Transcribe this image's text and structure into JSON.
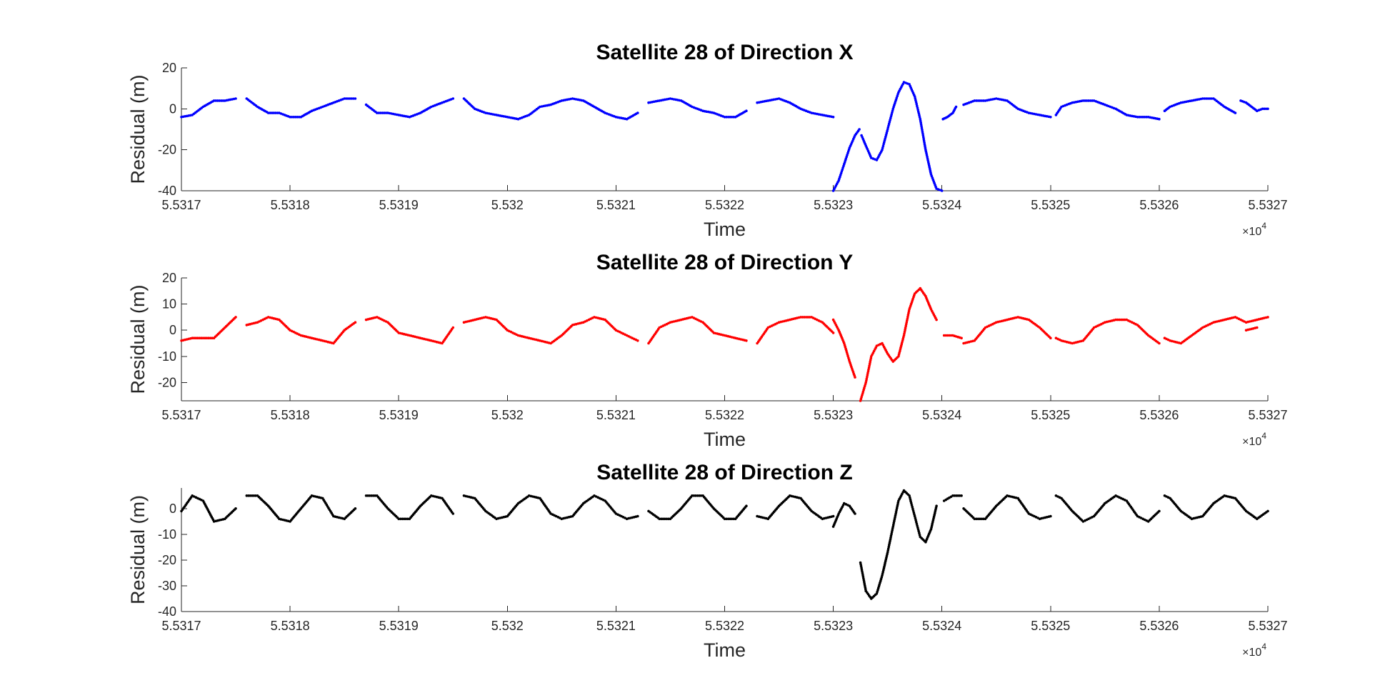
{
  "chart_data": [
    {
      "type": "scatter",
      "title": "Satellite 28 of Direction X",
      "xlabel": "Time",
      "ylabel": "Residual (m)",
      "x_exponent_base": "×10",
      "x_exponent_power": "4",
      "xlim": [
        5.5317,
        5.5327
      ],
      "ylim": [
        -40,
        20
      ],
      "xticks": [
        5.5317,
        5.5318,
        5.5319,
        5.532,
        5.5321,
        5.5322,
        5.5323,
        5.5324,
        5.5325,
        5.5326,
        5.5327
      ],
      "xtick_labels": [
        "5.5317",
        "5.5318",
        "5.5319",
        "5.532",
        "5.5321",
        "5.5322",
        "5.5323",
        "5.5324",
        "5.5325",
        "5.5326",
        "5.5327"
      ],
      "yticks": [
        -40,
        -20,
        0,
        20
      ],
      "ytick_labels": [
        "-40",
        "-20",
        "0",
        "20"
      ],
      "color": "#0000ff",
      "grid": false,
      "series": [
        {
          "x": [
            5.5317,
            5.53171,
            5.53172,
            5.53173,
            5.53174,
            5.53175
          ],
          "y": [
            -4,
            -3,
            1,
            4,
            4,
            5
          ]
        },
        {
          "x": [
            5.53176,
            5.53177,
            5.53178,
            5.53179,
            5.5318,
            5.53181,
            5.53182,
            5.53183,
            5.53184,
            5.53185,
            5.53186
          ],
          "y": [
            5,
            1,
            -2,
            -2,
            -4,
            -4,
            -1,
            1,
            3,
            5,
            5
          ]
        },
        {
          "x": [
            5.53187,
            5.53188,
            5.53189,
            5.5319,
            5.53191,
            5.53192,
            5.53193,
            5.53194,
            5.53195
          ],
          "y": [
            2,
            -2,
            -2,
            -3,
            -4,
            -2,
            1,
            3,
            5
          ]
        },
        {
          "x": [
            5.53196,
            5.53197,
            5.53198,
            5.53199,
            5.532,
            5.53201,
            5.53202,
            5.53203,
            5.53204,
            5.53205,
            5.53206,
            5.53207,
            5.53208,
            5.53209,
            5.5321,
            5.53211,
            5.53212
          ],
          "y": [
            5,
            0,
            -2,
            -3,
            -4,
            -5,
            -3,
            1,
            2,
            4,
            5,
            4,
            1,
            -2,
            -4,
            -5,
            -2
          ]
        },
        {
          "x": [
            5.53213,
            5.53214,
            5.53215,
            5.53216,
            5.53217,
            5.53218,
            5.53219,
            5.5322,
            5.53221,
            5.53222
          ],
          "y": [
            3,
            4,
            5,
            4,
            1,
            -1,
            -2,
            -4,
            -4,
            -1
          ]
        },
        {
          "x": [
            5.53223,
            5.53224,
            5.53225,
            5.53226,
            5.53227,
            5.53228,
            5.53229,
            5.5323
          ],
          "y": [
            3,
            4,
            5,
            3,
            0,
            -2,
            -3,
            -4
          ]
        },
        {
          "x": [
            5.5323,
            5.532305,
            5.53231,
            5.532315,
            5.53232,
            5.532324
          ],
          "y": [
            -40,
            -35,
            -27,
            -19,
            -13,
            -10
          ]
        },
        {
          "x": [
            5.532326,
            5.53233,
            5.532335,
            5.53234,
            5.532345,
            5.53235,
            5.532355,
            5.53236,
            5.532365,
            5.53237,
            5.532375,
            5.53238,
            5.532385,
            5.53239,
            5.532395,
            5.5324
          ],
          "y": [
            -13,
            -18,
            -24,
            -25,
            -20,
            -10,
            0,
            8,
            13,
            12,
            6,
            -5,
            -20,
            -32,
            -39,
            -40
          ]
        },
        {
          "x": [
            5.532401,
            5.532405,
            5.53241,
            5.532413
          ],
          "y": [
            -5,
            -4,
            -2,
            1
          ]
        },
        {
          "x": [
            5.53242,
            5.53243,
            5.53244,
            5.53245,
            5.53246,
            5.53247,
            5.53248,
            5.53249,
            5.5325
          ],
          "y": [
            2,
            4,
            4,
            5,
            4,
            0,
            -2,
            -3,
            -4
          ]
        },
        {
          "x": [
            5.532505,
            5.53251,
            5.53252,
            5.53253,
            5.53254,
            5.53255,
            5.53256,
            5.53257,
            5.53258,
            5.53259,
            5.5326
          ],
          "y": [
            -3,
            1,
            3,
            4,
            4,
            2,
            0,
            -3,
            -4,
            -4,
            -5
          ]
        },
        {
          "x": [
            5.532605,
            5.53261,
            5.53262,
            5.53263,
            5.53264,
            5.53265,
            5.53266,
            5.53267
          ],
          "y": [
            -1,
            1,
            3,
            4,
            5,
            5,
            1,
            -2
          ]
        },
        {
          "x": [
            5.532675,
            5.53268,
            5.532685,
            5.53269,
            5.532695,
            5.5327
          ],
          "y": [
            4,
            3,
            1,
            -1,
            0,
            0
          ]
        }
      ]
    },
    {
      "type": "scatter",
      "title": "Satellite 28 of Direction Y",
      "xlabel": "Time",
      "ylabel": "Residual (m)",
      "x_exponent_base": "×10",
      "x_exponent_power": "4",
      "xlim": [
        5.5317,
        5.5327
      ],
      "ylim": [
        -27,
        20
      ],
      "xticks": [
        5.5317,
        5.5318,
        5.5319,
        5.532,
        5.5321,
        5.5322,
        5.5323,
        5.5324,
        5.5325,
        5.5326,
        5.5327
      ],
      "xtick_labels": [
        "5.5317",
        "5.5318",
        "5.5319",
        "5.532",
        "5.5321",
        "5.5322",
        "5.5323",
        "5.5324",
        "5.5325",
        "5.5326",
        "5.5327"
      ],
      "yticks": [
        -20,
        -10,
        0,
        10,
        20
      ],
      "ytick_labels": [
        "-20",
        "-10",
        "0",
        "10",
        "20"
      ],
      "color": "#ff0000",
      "grid": false,
      "series": [
        {
          "x": [
            5.5317,
            5.53171,
            5.53172,
            5.53173,
            5.53174,
            5.53175
          ],
          "y": [
            -4,
            -3,
            -3,
            -3,
            1,
            5
          ]
        },
        {
          "x": [
            5.53176,
            5.53177,
            5.53178,
            5.53179,
            5.5318,
            5.53181,
            5.53182,
            5.53183,
            5.53184,
            5.53185,
            5.53186
          ],
          "y": [
            2,
            3,
            5,
            4,
            0,
            -2,
            -3,
            -4,
            -5,
            0,
            3
          ]
        },
        {
          "x": [
            5.53187,
            5.53188,
            5.53189,
            5.5319,
            5.53191,
            5.53192,
            5.53193,
            5.53194,
            5.53195
          ],
          "y": [
            4,
            5,
            3,
            -1,
            -2,
            -3,
            -4,
            -5,
            1
          ]
        },
        {
          "x": [
            5.53196,
            5.53197,
            5.53198,
            5.53199,
            5.532,
            5.53201,
            5.53202,
            5.53203,
            5.53204,
            5.53205,
            5.53206,
            5.53207,
            5.53208,
            5.53209,
            5.5321,
            5.53211,
            5.53212
          ],
          "y": [
            3,
            4,
            5,
            4,
            0,
            -2,
            -3,
            -4,
            -5,
            -2,
            2,
            3,
            5,
            4,
            0,
            -2,
            -4
          ]
        },
        {
          "x": [
            5.53213,
            5.53214,
            5.53215,
            5.53216,
            5.53217,
            5.53218,
            5.53219,
            5.5322,
            5.53221,
            5.53222
          ],
          "y": [
            -5,
            1,
            3,
            4,
            5,
            3,
            -1,
            -2,
            -3,
            -4
          ]
        },
        {
          "x": [
            5.53223,
            5.53224,
            5.53225,
            5.53226,
            5.53227,
            5.53228,
            5.53229,
            5.5323
          ],
          "y": [
            -5,
            1,
            3,
            4,
            5,
            5,
            3,
            -1
          ]
        },
        {
          "x": [
            5.5323,
            5.532305,
            5.53231,
            5.532315,
            5.53232
          ],
          "y": [
            4,
            0,
            -5,
            -12,
            -18
          ]
        },
        {
          "x": [
            5.532325,
            5.53233,
            5.532335,
            5.53234,
            5.532345,
            5.53235,
            5.532355,
            5.53236,
            5.532365,
            5.53237,
            5.532375,
            5.53238,
            5.532385,
            5.53239,
            5.532395
          ],
          "y": [
            -27,
            -20,
            -10,
            -6,
            -5,
            -9,
            -12,
            -10,
            -2,
            8,
            14,
            16,
            13,
            8,
            4
          ]
        },
        {
          "x": [
            5.532402,
            5.53241,
            5.532418
          ],
          "y": [
            -2,
            -2,
            -3
          ]
        },
        {
          "x": [
            5.53242,
            5.53243,
            5.53244,
            5.53245,
            5.53246,
            5.53247,
            5.53248,
            5.53249,
            5.5325
          ],
          "y": [
            -5,
            -4,
            1,
            3,
            4,
            5,
            4,
            1,
            -3
          ]
        },
        {
          "x": [
            5.532505,
            5.53251,
            5.53252,
            5.53253,
            5.53254,
            5.53255,
            5.53256,
            5.53257,
            5.53258,
            5.53259,
            5.5326
          ],
          "y": [
            -3,
            -4,
            -5,
            -4,
            1,
            3,
            4,
            4,
            2,
            -2,
            -5
          ]
        },
        {
          "x": [
            5.532605,
            5.53261,
            5.53262,
            5.53263,
            5.53264,
            5.53265,
            5.53266,
            5.53267,
            5.53268,
            5.53269,
            5.5327
          ],
          "y": [
            -3,
            -4,
            -5,
            -2,
            1,
            3,
            4,
            5,
            3,
            4,
            5
          ]
        },
        {
          "x": [
            5.53268,
            5.53269
          ],
          "y": [
            0,
            1
          ]
        }
      ]
    },
    {
      "type": "scatter",
      "title": "Satellite 28 of Direction Z",
      "xlabel": "Time",
      "ylabel": "Residual (m)",
      "x_exponent_base": "×10",
      "x_exponent_power": "4",
      "xlim": [
        5.5317,
        5.5327
      ],
      "ylim": [
        -40,
        8
      ],
      "xticks": [
        5.5317,
        5.5318,
        5.5319,
        5.532,
        5.5321,
        5.5322,
        5.5323,
        5.5324,
        5.5325,
        5.5326,
        5.5327
      ],
      "xtick_labels": [
        "5.5317",
        "5.5318",
        "5.5319",
        "5.532",
        "5.5321",
        "5.5322",
        "5.5323",
        "5.5324",
        "5.5325",
        "5.5326",
        "5.5327"
      ],
      "yticks": [
        -40,
        -30,
        -20,
        -10,
        0
      ],
      "ytick_labels": [
        "-40",
        "-30",
        "-20",
        "-10",
        "0"
      ],
      "color": "#000000",
      "grid": false,
      "series": [
        {
          "x": [
            5.5317,
            5.53171,
            5.53172,
            5.53173,
            5.53174,
            5.53175
          ],
          "y": [
            -1,
            5,
            3,
            -5,
            -4,
            0
          ]
        },
        {
          "x": [
            5.53176,
            5.53177,
            5.53178,
            5.53179,
            5.5318,
            5.53181,
            5.53182,
            5.53183,
            5.53184,
            5.53185,
            5.53186
          ],
          "y": [
            5,
            5,
            1,
            -4,
            -5,
            0,
            5,
            4,
            -3,
            -4,
            0
          ]
        },
        {
          "x": [
            5.53187,
            5.53188,
            5.53189,
            5.5319,
            5.53191,
            5.53192,
            5.53193,
            5.53194,
            5.53195
          ],
          "y": [
            5,
            5,
            0,
            -4,
            -4,
            1,
            5,
            4,
            -2
          ]
        },
        {
          "x": [
            5.53196,
            5.53197,
            5.53198,
            5.53199,
            5.532,
            5.53201,
            5.53202,
            5.53203,
            5.53204,
            5.53205,
            5.53206,
            5.53207,
            5.53208,
            5.53209,
            5.5321,
            5.53211,
            5.53212
          ],
          "y": [
            5,
            4,
            -1,
            -4,
            -3,
            2,
            5,
            4,
            -2,
            -4,
            -3,
            2,
            5,
            3,
            -2,
            -4,
            -3
          ]
        },
        {
          "x": [
            5.53213,
            5.53214,
            5.53215,
            5.53216,
            5.53217,
            5.53218,
            5.53219,
            5.5322,
            5.53221,
            5.53222
          ],
          "y": [
            -1,
            -4,
            -4,
            0,
            5,
            5,
            0,
            -4,
            -4,
            1
          ]
        },
        {
          "x": [
            5.53223,
            5.53224,
            5.53225,
            5.53226,
            5.53227,
            5.53228,
            5.53229,
            5.5323
          ],
          "y": [
            -3,
            -4,
            1,
            5,
            4,
            -1,
            -4,
            -3
          ]
        },
        {
          "x": [
            5.5323,
            5.532305,
            5.53231,
            5.532315,
            5.53232
          ],
          "y": [
            -7,
            -2,
            2,
            1,
            -2
          ]
        },
        {
          "x": [
            5.532325,
            5.53233,
            5.532335,
            5.53234,
            5.532345,
            5.53235,
            5.532355,
            5.53236,
            5.532365,
            5.53237,
            5.532375,
            5.53238,
            5.532385,
            5.53239,
            5.532395
          ],
          "y": [
            -21,
            -32,
            -35,
            -33,
            -26,
            -17,
            -7,
            3,
            7,
            5,
            -3,
            -11,
            -13,
            -8,
            1
          ]
        },
        {
          "x": [
            5.532402,
            5.53241,
            5.532418
          ],
          "y": [
            3,
            5,
            5
          ]
        },
        {
          "x": [
            5.53242,
            5.53243,
            5.53244,
            5.53245,
            5.53246,
            5.53247,
            5.53248,
            5.53249,
            5.5325
          ],
          "y": [
            0,
            -4,
            -4,
            1,
            5,
            4,
            -2,
            -4,
            -3
          ]
        },
        {
          "x": [
            5.532505,
            5.53251,
            5.53252,
            5.53253,
            5.53254,
            5.53255,
            5.53256,
            5.53257,
            5.53258,
            5.53259,
            5.5326
          ],
          "y": [
            5,
            4,
            -1,
            -5,
            -3,
            2,
            5,
            3,
            -3,
            -5,
            -1
          ]
        },
        {
          "x": [
            5.532605,
            5.53261,
            5.53262,
            5.53263,
            5.53264,
            5.53265,
            5.53266,
            5.53267,
            5.53268,
            5.53269,
            5.5327
          ],
          "y": [
            5,
            4,
            -1,
            -4,
            -3,
            2,
            5,
            4,
            -1,
            -4,
            -1
          ]
        }
      ]
    }
  ]
}
